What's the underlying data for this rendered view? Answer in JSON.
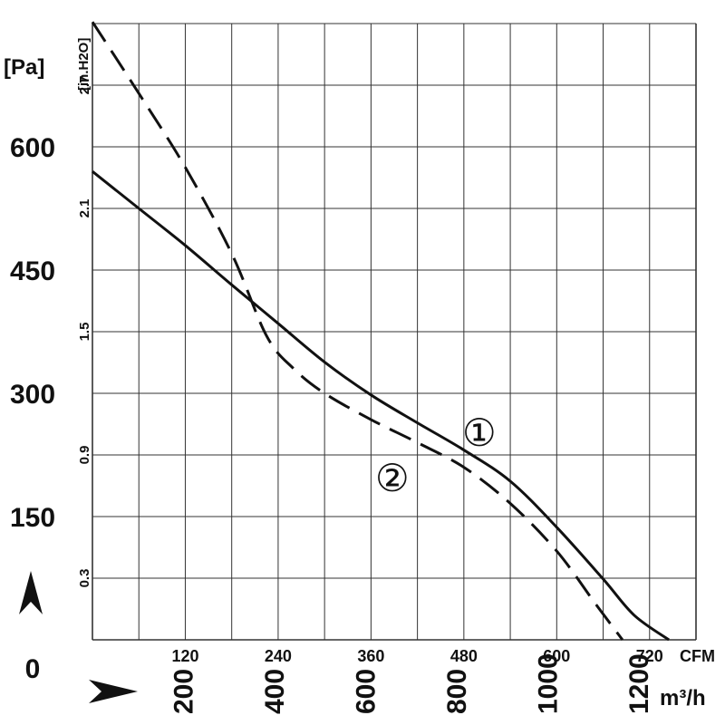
{
  "chart_data": {
    "type": "line",
    "y_left_unit": "[Pa]",
    "y_left_ticks": [
      "0",
      "150",
      "300",
      "450",
      "600"
    ],
    "y_left_range": [
      0,
      750
    ],
    "y_inner_unit": "[in.H2O]",
    "y_inner_ticks": [
      "0.3",
      "0.9",
      "1.5",
      "2.1",
      "2.7"
    ],
    "x_cfm_unit": "CFM",
    "x_cfm_ticks": [
      "120",
      "240",
      "360",
      "480",
      "600",
      "720"
    ],
    "x_cfm_range": [
      0,
      780
    ],
    "x_m3h_unit": "m³/h",
    "x_m3h_ticks": [
      "200",
      "400",
      "600",
      "800",
      "1000",
      "1200"
    ],
    "series": [
      {
        "name": "①",
        "style": "solid",
        "points": [
          [
            0,
            570
          ],
          [
            60,
            525
          ],
          [
            120,
            480
          ],
          [
            180,
            432
          ],
          [
            240,
            385
          ],
          [
            300,
            338
          ],
          [
            360,
            298
          ],
          [
            420,
            264
          ],
          [
            480,
            231
          ],
          [
            540,
            193
          ],
          [
            600,
            137
          ],
          [
            660,
            74
          ],
          [
            700,
            30
          ],
          [
            745,
            0
          ]
        ]
      },
      {
        "name": "②",
        "style": "dashed",
        "points": [
          [
            0,
            752
          ],
          [
            60,
            665
          ],
          [
            120,
            575
          ],
          [
            180,
            470
          ],
          [
            225,
            370
          ],
          [
            260,
            330
          ],
          [
            300,
            300
          ],
          [
            360,
            268
          ],
          [
            420,
            240
          ],
          [
            480,
            210
          ],
          [
            540,
            166
          ],
          [
            600,
            108
          ],
          [
            650,
            44
          ],
          [
            685,
            0
          ]
        ]
      }
    ],
    "grid": true,
    "colors": {
      "line": "#111111",
      "grid": "#333333",
      "background": "#ffffff"
    },
    "direction_arrows": [
      "arrow-up-icon",
      "arrow-right-icon"
    ]
  }
}
